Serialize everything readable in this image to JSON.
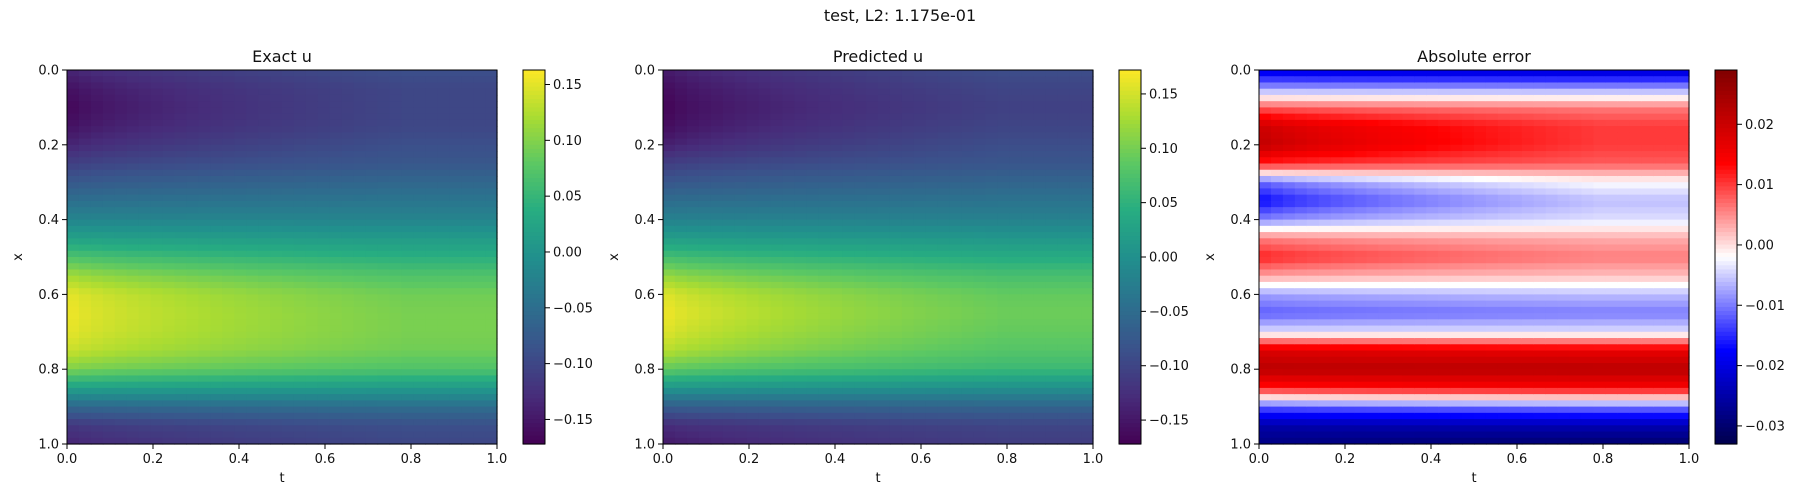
{
  "figure": {
    "suptitle": "test, L2: 1.175e-01"
  },
  "chart_data": [
    {
      "type": "heatmap",
      "title": "Exact u",
      "xlabel": "t",
      "ylabel": "x",
      "xlim": [
        0.0,
        1.0
      ],
      "ylim": [
        1.0,
        0.0
      ],
      "xticks": [
        "0.0",
        "0.2",
        "0.4",
        "0.6",
        "0.8",
        "1.0"
      ],
      "yticks": [
        "0.0",
        "0.2",
        "0.4",
        "0.6",
        "0.8",
        "1.0"
      ],
      "colormap": "viridis",
      "clim": [
        -0.172,
        0.163
      ],
      "colorbar_ticks": [
        0.15,
        0.1,
        0.05,
        0.0,
        -0.05,
        -0.1,
        -0.15
      ],
      "colorbar_ticklabels": [
        "0.15",
        "0.10",
        "0.05",
        "0.00",
        "−0.05",
        "−0.10",
        "−0.15"
      ],
      "x_profile": [
        0.0,
        0.05,
        0.1,
        0.15,
        0.2,
        0.25,
        0.3,
        0.35,
        0.4,
        0.45,
        0.5,
        0.55,
        0.6,
        0.65,
        0.7,
        0.75,
        0.8,
        0.85,
        0.9,
        0.95,
        1.0
      ],
      "u_at_t0": [
        -0.14,
        -0.16,
        -0.17,
        -0.16,
        -0.14,
        -0.11,
        -0.08,
        -0.05,
        -0.02,
        0.02,
        0.07,
        0.12,
        0.155,
        0.16,
        0.155,
        0.14,
        0.1,
        0.02,
        -0.06,
        -0.12,
        -0.14
      ],
      "u_at_t1": [
        -0.09,
        -0.1,
        -0.1,
        -0.1,
        -0.09,
        -0.08,
        -0.06,
        -0.04,
        -0.02,
        0.01,
        0.04,
        0.07,
        0.09,
        0.095,
        0.095,
        0.09,
        0.07,
        0.01,
        -0.05,
        -0.09,
        -0.1
      ]
    },
    {
      "type": "heatmap",
      "title": "Predicted u",
      "xlabel": "t",
      "ylabel": "x",
      "xlim": [
        0.0,
        1.0
      ],
      "ylim": [
        1.0,
        0.0
      ],
      "xticks": [
        "0.0",
        "0.2",
        "0.4",
        "0.6",
        "0.8",
        "1.0"
      ],
      "yticks": [
        "0.0",
        "0.2",
        "0.4",
        "0.6",
        "0.8",
        "1.0"
      ],
      "colormap": "viridis",
      "clim": [
        -0.172,
        0.172
      ],
      "colorbar_ticks": [
        0.15,
        0.1,
        0.05,
        0.0,
        -0.05,
        -0.1,
        -0.15
      ],
      "colorbar_ticklabels": [
        "0.15",
        "0.10",
        "0.05",
        "0.00",
        "−0.05",
        "−0.10",
        "−0.15"
      ],
      "x_profile": [
        0.0,
        0.05,
        0.1,
        0.15,
        0.2,
        0.25,
        0.3,
        0.35,
        0.4,
        0.45,
        0.5,
        0.55,
        0.6,
        0.65,
        0.7,
        0.75,
        0.8,
        0.85,
        0.9,
        0.95,
        1.0
      ],
      "u_at_t0": [
        -0.15,
        -0.165,
        -0.172,
        -0.165,
        -0.145,
        -0.11,
        -0.08,
        -0.05,
        -0.02,
        0.02,
        0.07,
        0.12,
        0.16,
        0.17,
        0.16,
        0.14,
        0.09,
        0.01,
        -0.07,
        -0.13,
        -0.15
      ],
      "u_at_t1": [
        -0.09,
        -0.1,
        -0.105,
        -0.1,
        -0.09,
        -0.08,
        -0.06,
        -0.04,
        -0.02,
        0.01,
        0.04,
        0.07,
        0.09,
        0.095,
        0.09,
        0.08,
        0.06,
        0.0,
        -0.06,
        -0.1,
        -0.11
      ]
    },
    {
      "type": "heatmap",
      "title": "Absolute error",
      "xlabel": "t",
      "ylabel": "x",
      "xlim": [
        0.0,
        1.0
      ],
      "ylim": [
        1.0,
        0.0
      ],
      "xticks": [
        "0.0",
        "0.2",
        "0.4",
        "0.6",
        "0.8",
        "1.0"
      ],
      "yticks": [
        "0.0",
        "0.2",
        "0.4",
        "0.6",
        "0.8",
        "1.0"
      ],
      "colormap": "seismic",
      "clim": [
        -0.033,
        0.029
      ],
      "colorbar_ticks": [
        0.02,
        0.01,
        0.0,
        -0.01,
        -0.02,
        -0.03
      ],
      "colorbar_ticklabels": [
        "0.02",
        "0.01",
        "0.00",
        "−0.01",
        "−0.02",
        "−0.03"
      ],
      "x_profile": [
        0.0,
        0.05,
        0.1,
        0.15,
        0.2,
        0.25,
        0.3,
        0.35,
        0.4,
        0.45,
        0.5,
        0.55,
        0.6,
        0.65,
        0.7,
        0.75,
        0.8,
        0.85,
        0.9,
        0.95,
        1.0
      ],
      "e_at_t0": [
        -0.02,
        -0.008,
        0.008,
        0.02,
        0.022,
        0.012,
        -0.012,
        -0.018,
        -0.01,
        0.006,
        0.012,
        0.004,
        -0.008,
        -0.012,
        -0.004,
        0.018,
        0.022,
        0.012,
        -0.012,
        -0.025,
        -0.028
      ],
      "e_at_t1": [
        -0.022,
        -0.008,
        0.006,
        0.01,
        0.01,
        0.008,
        -0.002,
        -0.006,
        -0.004,
        0.003,
        0.006,
        0.002,
        -0.006,
        -0.01,
        -0.004,
        0.016,
        0.022,
        0.014,
        -0.01,
        -0.024,
        -0.03
      ]
    }
  ]
}
